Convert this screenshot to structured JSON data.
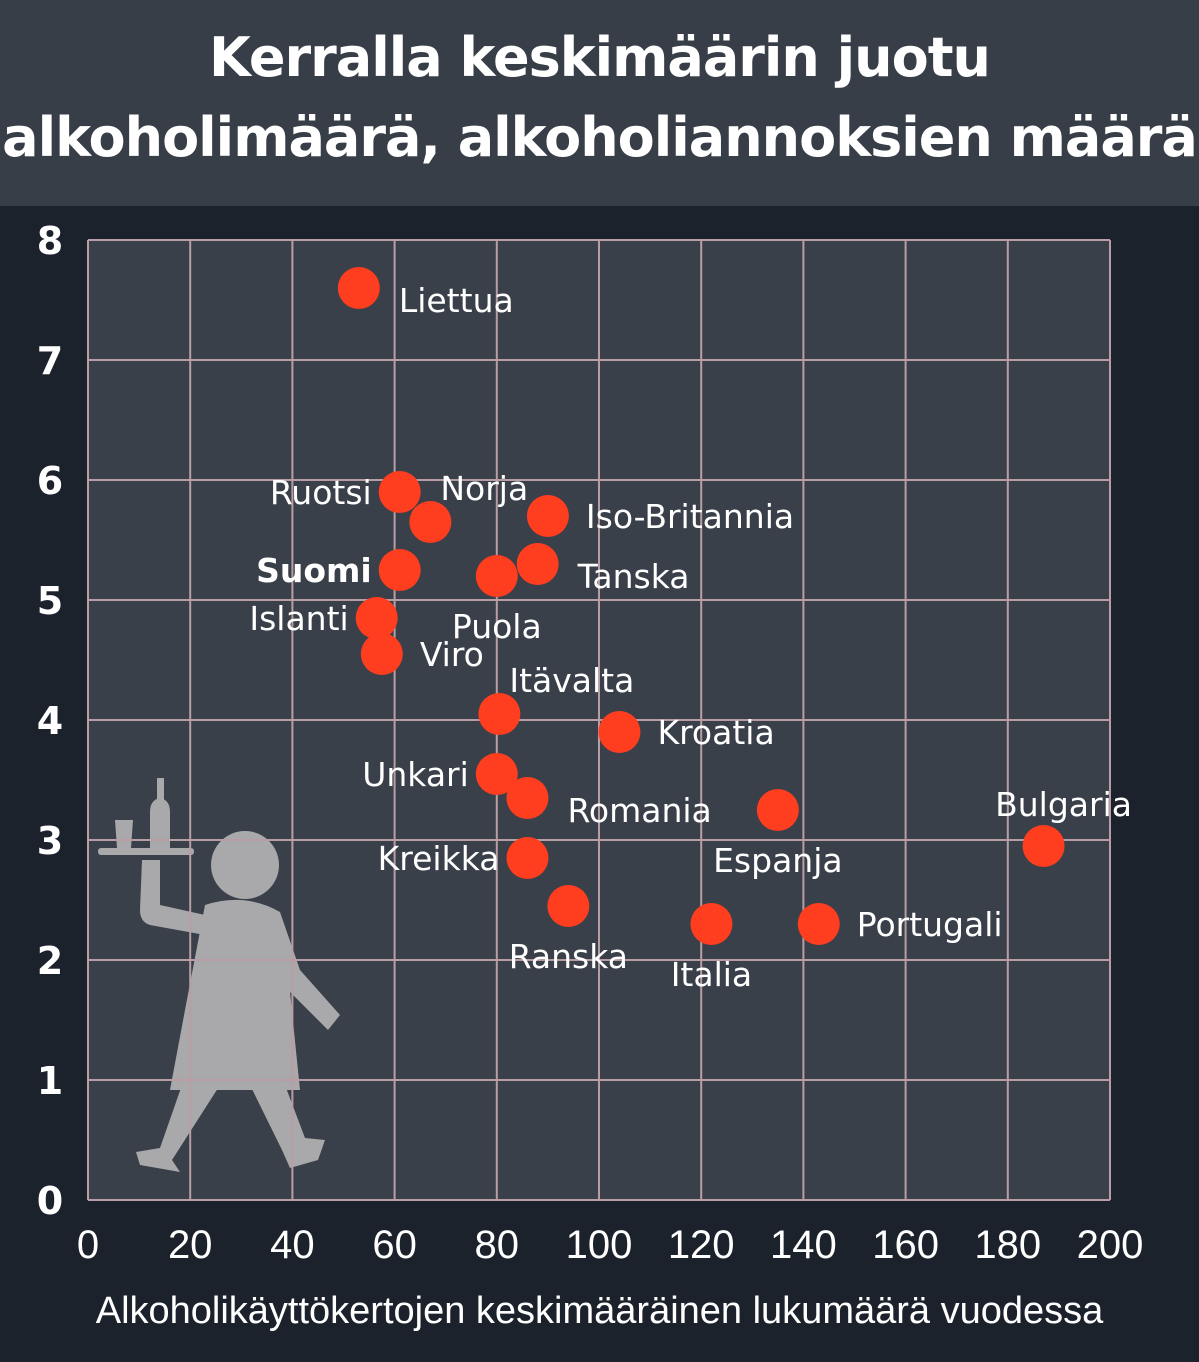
{
  "header": {
    "title_line1": "Kerralla keskimäärin juotu",
    "title_line2": "alkoholimäärä, alkoholiannoksien määrä"
  },
  "colors": {
    "background": "#1c222b",
    "header": "#373e47",
    "plot_area": "#3a4049",
    "grid": "#b89ea4",
    "point": "#ff3d1f",
    "text": "#ffffff",
    "illustration": "#a9a9ac"
  },
  "illustration": "waiter-with-tray-icon",
  "chart_data": {
    "type": "scatter",
    "title": "Kerralla keskimäärin juotu alkoholimäärä, alkoholiannoksien määrä",
    "xlabel": "Alkoholikäyttökertojen keskimääräinen lukumäärä vuodessa",
    "ylabel": "",
    "xlim": [
      0,
      200
    ],
    "ylim": [
      0,
      8
    ],
    "x_ticks": [
      "0",
      "20",
      "40",
      "60",
      "80",
      "100",
      "120",
      "140",
      "160",
      "180",
      "200"
    ],
    "y_ticks": [
      "0",
      "1",
      "2",
      "3",
      "4",
      "5",
      "6",
      "7",
      "8"
    ],
    "grid": true,
    "points": [
      {
        "label": "Liettua",
        "x": 53,
        "y": 7.6,
        "label_pos": "right-below",
        "bold": false
      },
      {
        "label": "Ruotsi",
        "x": 61,
        "y": 5.9,
        "label_pos": "left",
        "bold": false
      },
      {
        "label": "Norja",
        "x": 67,
        "y": 5.65,
        "label_pos": "above-right",
        "bold": false
      },
      {
        "label": "Iso-Britannia",
        "x": 90,
        "y": 5.7,
        "label_pos": "right",
        "bold": false
      },
      {
        "label": "Suomi",
        "x": 61,
        "y": 5.25,
        "label_pos": "left",
        "bold": true
      },
      {
        "label": "Tanska",
        "x": 88,
        "y": 5.3,
        "label_pos": "right-below",
        "bold": false
      },
      {
        "label": "Puola",
        "x": 80,
        "y": 5.2,
        "label_pos": "below",
        "bold": false
      },
      {
        "label": "Islanti",
        "x": 56.5,
        "y": 4.85,
        "label_pos": "left",
        "bold": false
      },
      {
        "label": "Viro",
        "x": 57.5,
        "y": 4.55,
        "label_pos": "right",
        "bold": false
      },
      {
        "label": "Itävalta",
        "x": 80.5,
        "y": 4.05,
        "label_pos": "above-right",
        "bold": false
      },
      {
        "label": "Kroatia",
        "x": 104,
        "y": 3.9,
        "label_pos": "right",
        "bold": false
      },
      {
        "label": "Unkari",
        "x": 80,
        "y": 3.55,
        "label_pos": "left",
        "bold": false
      },
      {
        "label": "Romania",
        "x": 86,
        "y": 3.35,
        "label_pos": "right-below",
        "bold": false
      },
      {
        "label": "Espanja",
        "x": 135,
        "y": 3.25,
        "label_pos": "below",
        "bold": false
      },
      {
        "label": "Bulgaria",
        "x": 187,
        "y": 2.95,
        "label_pos": "above",
        "bold": false
      },
      {
        "label": "Kreikka",
        "x": 86,
        "y": 2.85,
        "label_pos": "left",
        "bold": false
      },
      {
        "label": "Ranska",
        "x": 94,
        "y": 2.45,
        "label_pos": "below",
        "bold": false
      },
      {
        "label": "Italia",
        "x": 122,
        "y": 2.3,
        "label_pos": "below",
        "bold": false
      },
      {
        "label": "Portugali",
        "x": 143,
        "y": 2.3,
        "label_pos": "right",
        "bold": false
      }
    ]
  }
}
